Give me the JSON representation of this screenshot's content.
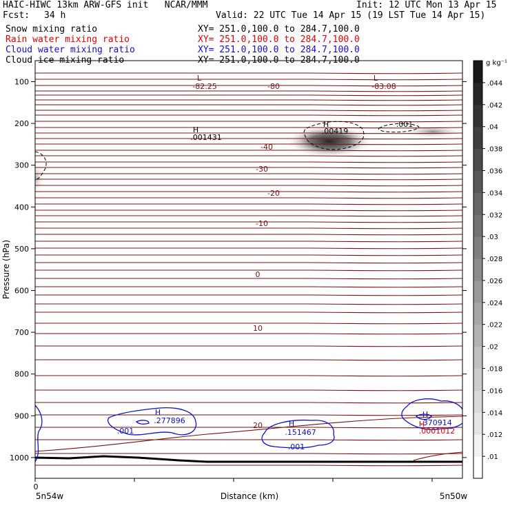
{
  "header": {
    "title_left": "HAIC-HIWC 13km ARW-GFS init   NCAR/MMM",
    "init": "Init: 12 UTC Mon 13 Apr 15",
    "fcst_label": "Fcst:",
    "fcst_value": "34 h",
    "valid": "Valid: 22 UTC Tue 14 Apr 15 (19 LST Tue 14 Apr 15)",
    "fields": [
      {
        "name": "Snow mixing ratio",
        "xy": "XY= 251.0,100.0 to 284.7,100.0",
        "color": "#000000"
      },
      {
        "name": "Rain water mixing ratio",
        "xy": "XY= 251.0,100.0 to 284.7,100.0",
        "color": "#e00000"
      },
      {
        "name": "Cloud water mixing ratio",
        "xy": "XY= 251.0,100.0 to 284.7,100.0",
        "color": "#1010cc"
      },
      {
        "name": "Cloud ice mixing ratio",
        "xy": "XY= 251.0,100.0 to 284.7,100.0",
        "color": "#000000"
      }
    ]
  },
  "chart_data": {
    "type": "contour_cross_section",
    "ylabel": "Pressure (hPa)",
    "xlabel": "Distance (km)",
    "x_start_label": "5n54w",
    "x_end_label": "5n50w",
    "x_tick_value_label": "0",
    "y_ticks": [
      100,
      200,
      300,
      400,
      500,
      600,
      700,
      800,
      900,
      1000
    ],
    "colorbar_unit": "g kg⁻¹",
    "colorbar_ticks": [
      ".01",
      ".012",
      ".014",
      ".016",
      ".018",
      ".02",
      ".022",
      ".024",
      ".026",
      ".028",
      ".03",
      ".032",
      ".034",
      ".036",
      ".038",
      ".04",
      ".042",
      ".044"
    ],
    "temperature_labels": [
      {
        "text": "-80",
        "p": 125
      },
      {
        "text": "-40",
        "p": 242
      },
      {
        "text": "-30",
        "p": 292
      },
      {
        "text": "-20",
        "p": 346
      },
      {
        "text": "-10",
        "p": 423
      },
      {
        "text": "0",
        "p": 562
      },
      {
        "text": "10",
        "p": 680
      },
      {
        "text": "20",
        "p": 920
      }
    ],
    "extrema": [
      {
        "mark": "L",
        "value": "-82.25",
        "color": "#7a0f0f"
      },
      {
        "mark": "L",
        "value": "-83.08",
        "color": "#7a0f0f"
      },
      {
        "mark": "H",
        "value": ".001431",
        "color": "#000000"
      },
      {
        "mark": "H",
        "value": ".00419",
        "color": "#000000"
      },
      {
        "mark": "",
        "value": ".001",
        "color": "#000000"
      },
      {
        "mark": "H",
        "value": ".277896",
        "color": "#1010cc"
      },
      {
        "mark": "",
        "value": ".001",
        "color": "#1010cc"
      },
      {
        "mark": "H",
        "value": ".151467",
        "color": "#1010cc"
      },
      {
        "mark": "",
        "value": ".001",
        "color": "#1010cc"
      },
      {
        "mark": "H",
        "value": ".370914",
        "color": "#1010cc"
      },
      {
        "mark": "H",
        "value": ".0001012",
        "color": "#e00000"
      }
    ]
  }
}
